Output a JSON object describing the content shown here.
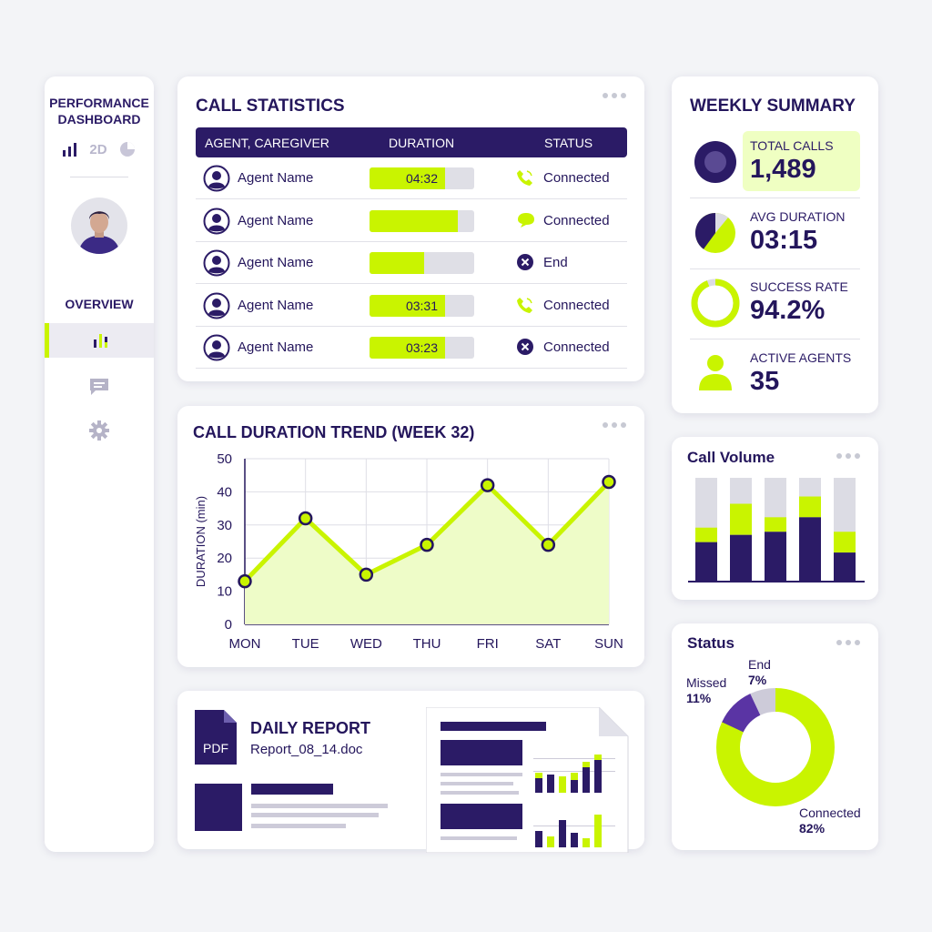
{
  "sidebar": {
    "title_line1": "PERFORMANCE",
    "title_line2": "DASHBOARD",
    "view_2d": "2D",
    "overview": "OVERVIEW"
  },
  "call_stats": {
    "title": "CALL STATISTICS",
    "headers": [
      "AGENT, CAREGIVER",
      "DURATION",
      "STATUS"
    ],
    "rows": [
      {
        "agent": "Agent Name",
        "duration": "04:32",
        "fill": 0.72,
        "status": "Connected",
        "status_icon": "phone-icon"
      },
      {
        "agent": "Agent Name",
        "duration": "",
        "fill": 0.84,
        "status": "Connected",
        "status_icon": "chat-icon"
      },
      {
        "agent": "Agent Name",
        "duration": "",
        "fill": 0.52,
        "status": "End",
        "status_icon": "x-circle-icon"
      },
      {
        "agent": "Agent Name",
        "duration": "03:31",
        "fill": 0.72,
        "status": "Connected",
        "status_icon": "phone-icon"
      },
      {
        "agent": "Agent Name",
        "duration": "03:23",
        "fill": 0.72,
        "status": "Connected",
        "status_icon": "x-circle-icon"
      }
    ]
  },
  "weekly": {
    "title": "WEEKLY SUMMARY",
    "total_calls_label": "TOTAL CALLS",
    "total_calls": "1,489",
    "avg_duration_label": "AVG DURATION",
    "avg_duration": "03:15",
    "success_rate_label": "SUCCESS RATE",
    "success_rate": "94.2%",
    "success_rate_fraction": 0.942,
    "active_agents_label": "ACTIVE AGENTS",
    "active_agents": "35"
  },
  "trend_title": "CALL DURATION TREND (WEEK 32)",
  "volume_title": "Call Volume",
  "volume_bars": [
    {
      "dark": 0.38,
      "lime": 0.14
    },
    {
      "dark": 0.45,
      "lime": 0.3
    },
    {
      "dark": 0.48,
      "lime": 0.14
    },
    {
      "dark": 0.62,
      "lime": 0.2
    },
    {
      "dark": 0.28,
      "lime": 0.2
    }
  ],
  "report": {
    "pdf_label": "PDF",
    "title": "DAILY REPORT",
    "file": "Report_08_14.doc"
  },
  "status": {
    "title": "Status",
    "end_label": "End",
    "end_value": "7%",
    "missed_label": "Missed",
    "missed_value": "11%",
    "connected_label": "Connected",
    "connected_value": "82%"
  },
  "colors": {
    "accent": "#c9f400",
    "primary": "#2b1b66",
    "muted": "#cdcbd9"
  },
  "chart_data": {
    "type": "line",
    "title": "CALL DURATION TREND (WEEK 32)",
    "xlabel": "",
    "ylabel": "DURATION (min)",
    "categories": [
      "MON",
      "TUE",
      "WED",
      "THU",
      "FRI",
      "SAT",
      "SUN"
    ],
    "values": [
      13,
      32,
      15,
      24,
      42,
      24,
      43
    ],
    "ylim": [
      0,
      50
    ],
    "yticks": [
      "0",
      "10",
      "20",
      "30",
      "40",
      "50"
    ],
    "grid": true
  },
  "status_chart": {
    "type": "pie",
    "labels": [
      "Connected",
      "Missed",
      "End"
    ],
    "values": [
      82,
      11,
      7
    ]
  }
}
